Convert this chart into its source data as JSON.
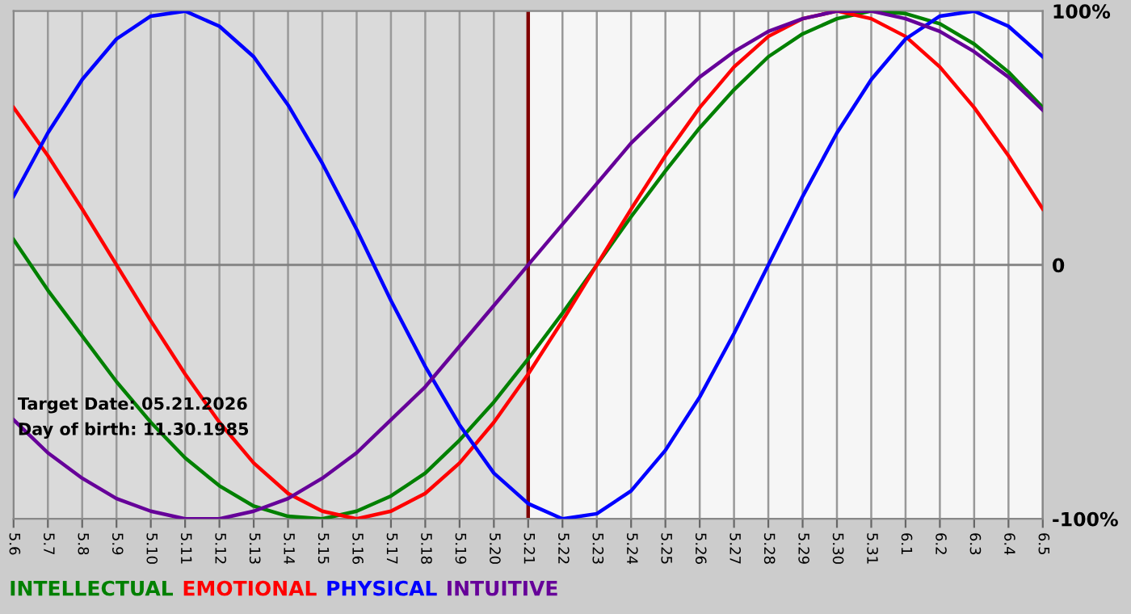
{
  "chart_data": {
    "type": "line",
    "categories": [
      "5.6",
      "5.7",
      "5.8",
      "5.9",
      "5.10",
      "5.11",
      "5.12",
      "5.13",
      "5.14",
      "5.15",
      "5.16",
      "5.17",
      "5.18",
      "5.19",
      "5.20",
      "5.21",
      "5.22",
      "5.23",
      "5.24",
      "5.25",
      "5.26",
      "5.27",
      "5.28",
      "5.29",
      "5.30",
      "5.31",
      "6.1",
      "6.2",
      "6.3",
      "6.4",
      "6.5"
    ],
    "series": [
      {
        "name": "INTELLECTUAL",
        "color": "#008000",
        "values": [
          10,
          -10,
          -28,
          -46,
          -62,
          -76,
          -87,
          -95,
          -99,
          -100,
          -97,
          -91,
          -82,
          -69,
          -54,
          -37,
          -19,
          0,
          19,
          37,
          54,
          69,
          82,
          91,
          97,
          100,
          99,
          95,
          87,
          76,
          62
        ]
      },
      {
        "name": "EMOTIONAL",
        "color": "#ff0000",
        "values": [
          62,
          43,
          22,
          0,
          -22,
          -43,
          -62,
          -78,
          -90,
          -97,
          -100,
          -97,
          -90,
          -78,
          -62,
          -43,
          -22,
          0,
          22,
          43,
          62,
          78,
          90,
          97,
          100,
          97,
          90,
          78,
          62,
          43,
          22
        ]
      },
      {
        "name": "PHYSICAL",
        "color": "#0000ff",
        "values": [
          27,
          52,
          73,
          89,
          98,
          100,
          94,
          82,
          63,
          40,
          14,
          -14,
          -40,
          -63,
          -82,
          -94,
          -100,
          -98,
          -89,
          -73,
          -52,
          -27,
          0,
          27,
          52,
          73,
          89,
          98,
          100,
          94,
          82
        ]
      },
      {
        "name": "INTUITIVE",
        "color": "#660099",
        "values": [
          -61,
          -74,
          -84,
          -92,
          -97,
          -100,
          -100,
          -97,
          -92,
          -84,
          -74,
          -61,
          -48,
          -32,
          -16,
          0,
          16,
          32,
          48,
          61,
          74,
          84,
          92,
          97,
          100,
          100,
          97,
          92,
          84,
          74,
          61
        ]
      }
    ],
    "ylim": [
      -100,
      100
    ],
    "yticks": [
      {
        "value": -100,
        "label": "-100%"
      },
      0,
      {
        "value": 100,
        "label": "100%"
      }
    ],
    "grid": "x",
    "legend": "bottom",
    "marker": "none",
    "line_style": "solid",
    "ref_lines": [
      {
        "axis": "x",
        "value": "5.21",
        "color": "#800000"
      },
      {
        "axis": "y",
        "value": 0,
        "color": "#808080"
      }
    ],
    "bands": [
      {
        "axis": "x",
        "from": "5.6",
        "to": "5.21",
        "color": "#dadada"
      }
    ],
    "annotations": [
      "Target Date: 05.21.2026",
      "Day of birth: 11.30.1985"
    ]
  }
}
